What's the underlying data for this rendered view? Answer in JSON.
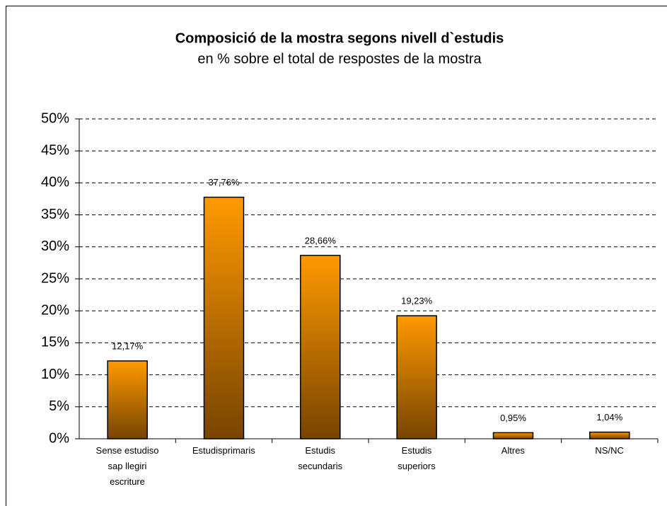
{
  "chart_data": {
    "type": "bar",
    "title": "Composició de la mostra segons nivell d`estudis",
    "subtitle": "en % sobre  el total de respostes de la mostra",
    "categories": [
      "Sense estudiso\nsap llegiri\nescriture",
      "Estudisprimaris",
      "Estudis\nsecundaris",
      "Estudis\nsuperiors",
      "Altres",
      "NS/NC"
    ],
    "values": [
      12.17,
      37.76,
      28.66,
      19.23,
      0.95,
      1.04
    ],
    "value_labels": [
      "12,17%",
      "37,76%",
      "28,66%",
      "19,23%",
      "0,95%",
      "1,04%"
    ],
    "color": "#ff9900",
    "ylim": [
      0,
      50
    ],
    "yticks": [
      {
        "value": 0,
        "label": "0%"
      },
      {
        "value": 5,
        "label": "5%"
      },
      {
        "value": 10,
        "label": "10%"
      },
      {
        "value": 15,
        "label": "15%"
      },
      {
        "value": 20,
        "label": "20%"
      },
      {
        "value": 25,
        "label": "25%"
      },
      {
        "value": 30,
        "label": "30%"
      },
      {
        "value": 35,
        "label": "35%"
      },
      {
        "value": 40,
        "label": "40%"
      },
      {
        "value": 45,
        "label": "45%"
      },
      {
        "value": 50,
        "label": "50%"
      }
    ],
    "grid": true
  }
}
